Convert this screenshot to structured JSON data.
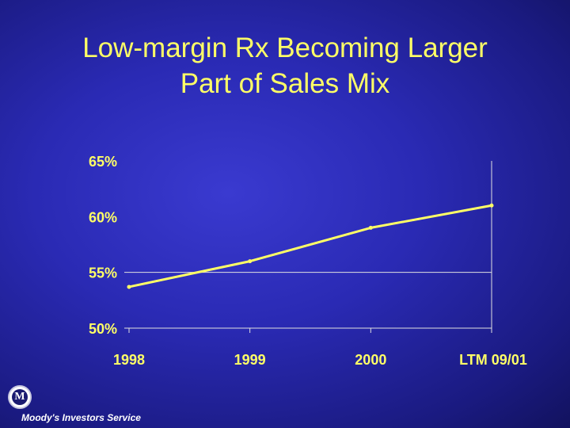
{
  "slide": {
    "title_line1": "Low-margin Rx Becoming Larger",
    "title_line2": "Part of Sales Mix",
    "footer_text": "Moody's Investors Service",
    "logo_letter": "M"
  },
  "chart_data": {
    "type": "line",
    "categories": [
      "1998",
      "1999",
      "2000",
      "LTM 09/01"
    ],
    "series": [
      {
        "values": [
          53.7,
          56.0,
          59.0,
          61.0
        ]
      }
    ],
    "ylim": [
      50,
      65
    ],
    "yticks": [
      50,
      55,
      60,
      65
    ],
    "ytick_labels": [
      "50%",
      "55%",
      "60%",
      "65%"
    ],
    "xlabel": "",
    "ylabel": "",
    "grid": false,
    "line_color": "#ffff66"
  }
}
